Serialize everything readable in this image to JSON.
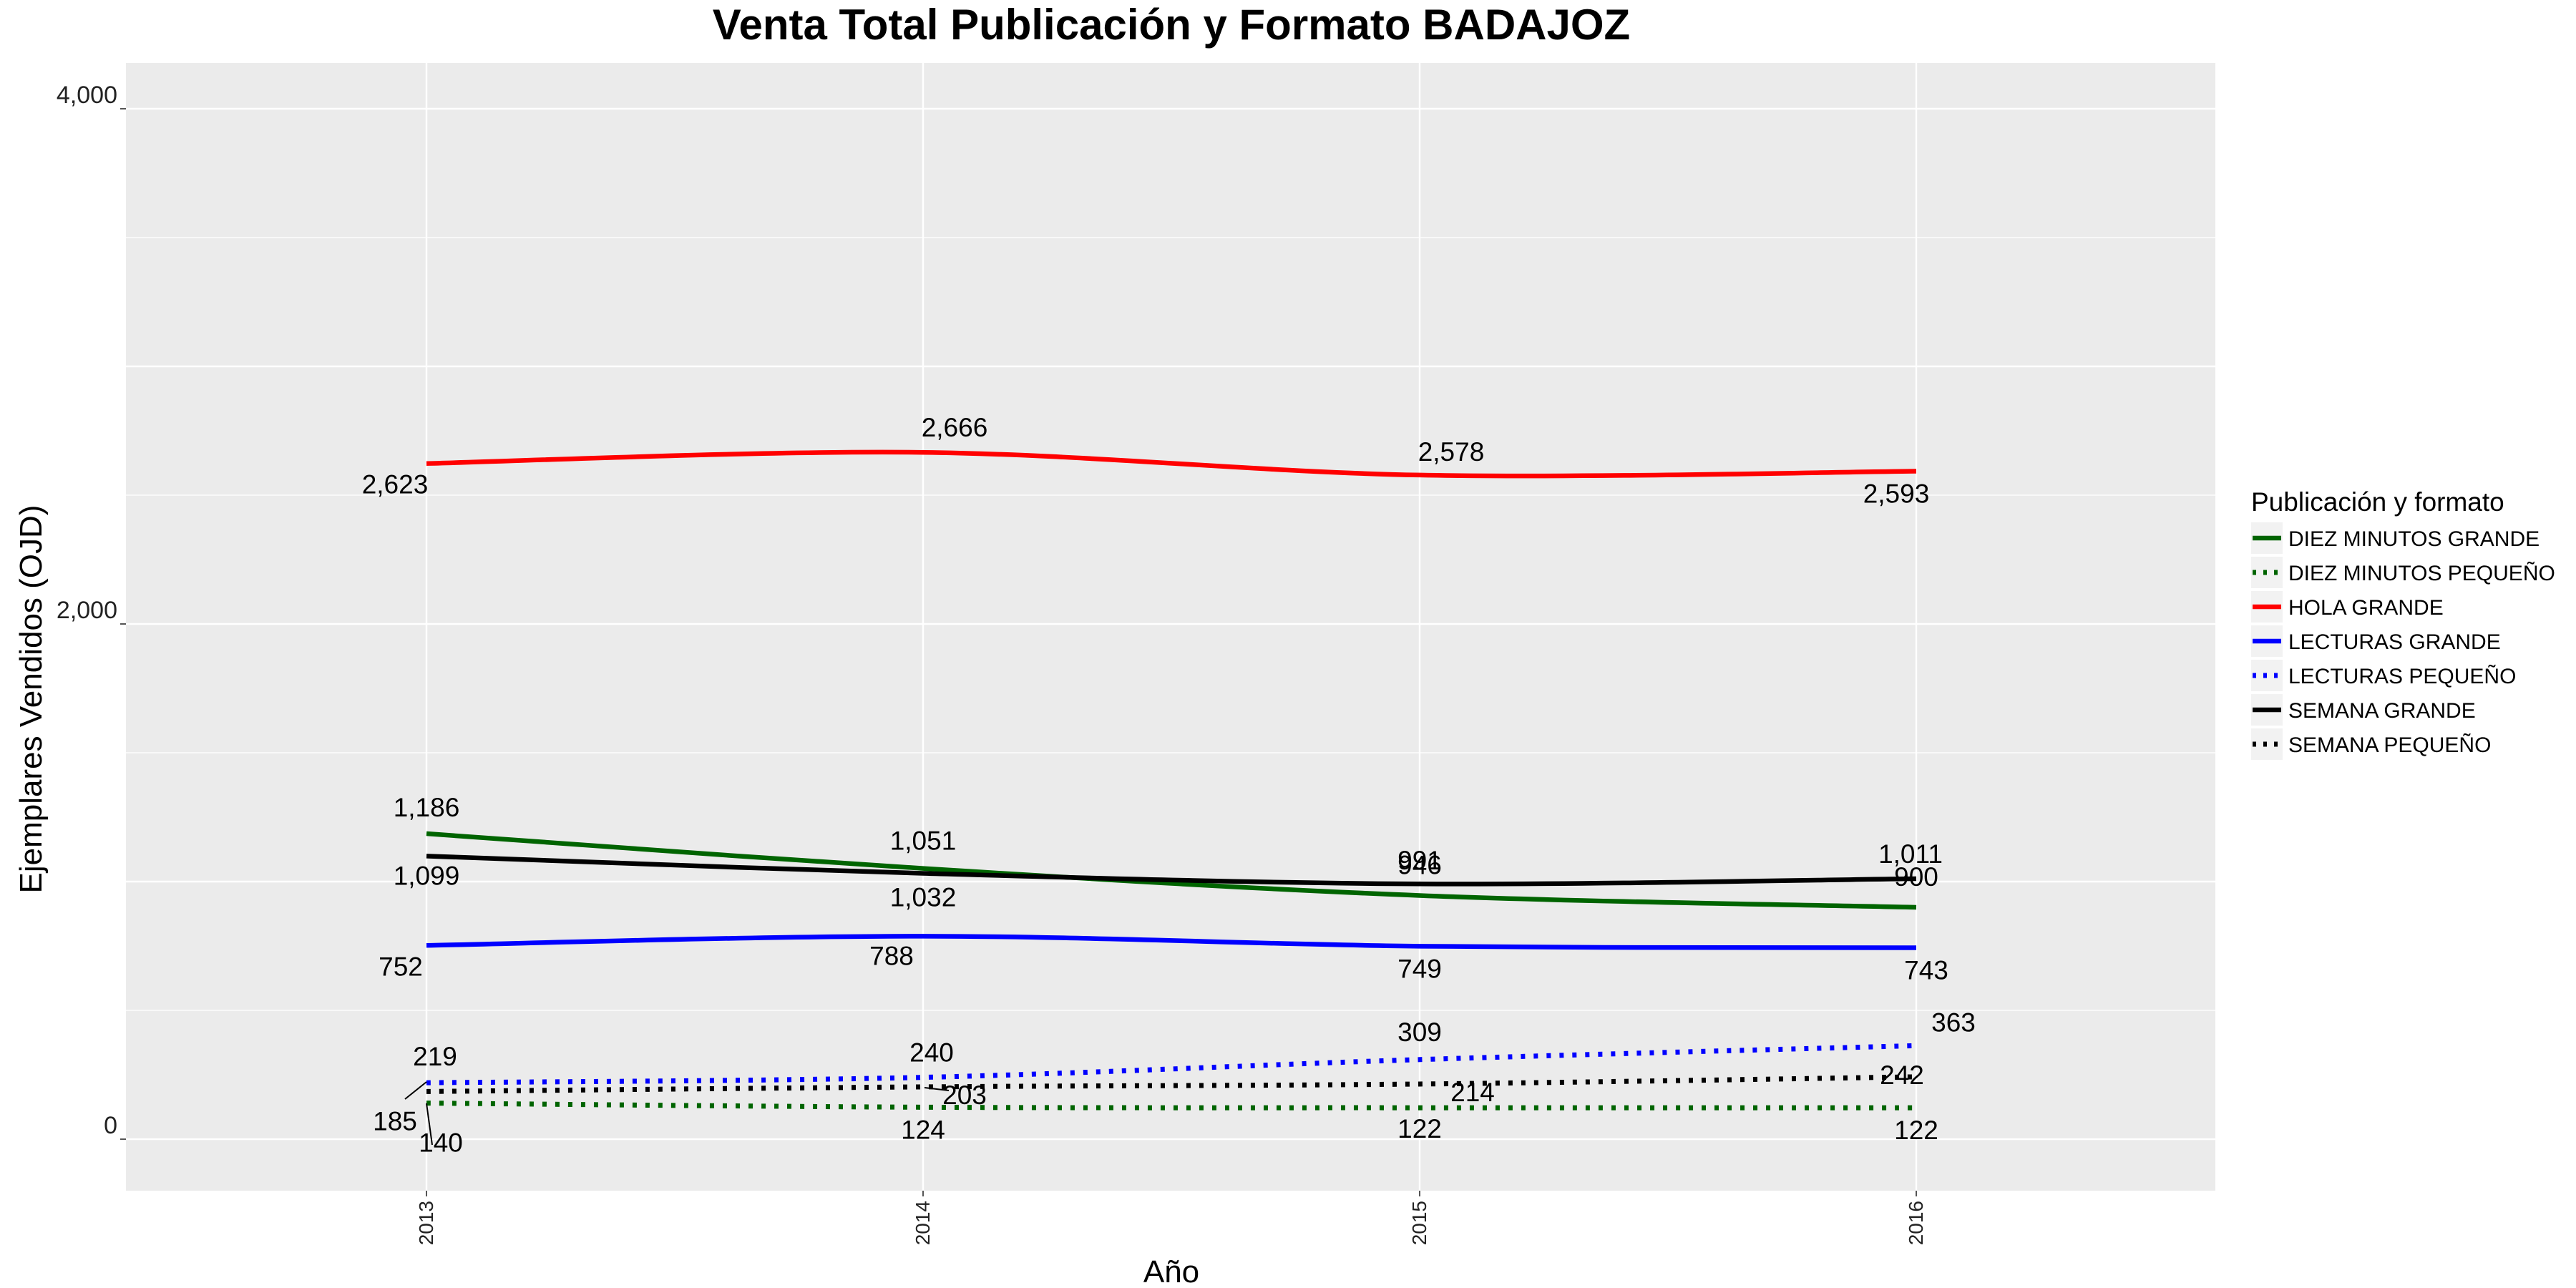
{
  "chart_data": {
    "type": "line",
    "title": "Venta Total Publicación y Formato  BADAJOZ",
    "xlabel": "Año",
    "ylabel": "Ejemplares Vendidos (OJD)",
    "x": [
      "2013",
      "2014",
      "2015",
      "2016"
    ],
    "ylim": [
      -200,
      4050
    ],
    "yticks": [
      0,
      2000,
      4000
    ],
    "ytick_labels": [
      "0",
      "2,000",
      "4,000"
    ],
    "grid": true,
    "legend_title": "Publicación y formato",
    "legend_position": "right",
    "series": [
      {
        "name": "DIEZ MINUTOS GRANDE",
        "values": [
          1186,
          1051,
          946,
          900
        ],
        "labels": [
          "1,186",
          "1,051",
          "946",
          "900"
        ],
        "color": "#006400",
        "dash": "solid"
      },
      {
        "name": "DIEZ MINUTOS PEQUEÑO",
        "values": [
          140,
          124,
          122,
          122
        ],
        "labels": [
          "140",
          "124",
          "122",
          "122"
        ],
        "color": "#006400",
        "dash": "dotted"
      },
      {
        "name": "HOLA GRANDE",
        "values": [
          2623,
          2666,
          2578,
          2593
        ],
        "labels": [
          "2,623",
          "2,666",
          "2,578",
          "2,593"
        ],
        "color": "#ff0000",
        "dash": "solid"
      },
      {
        "name": "LECTURAS GRANDE",
        "values": [
          752,
          788,
          749,
          743
        ],
        "labels": [
          "752",
          "788",
          "749",
          "743"
        ],
        "color": "#0000ff",
        "dash": "solid"
      },
      {
        "name": "LECTURAS PEQUEÑO",
        "values": [
          219,
          240,
          309,
          363
        ],
        "labels": [
          "219",
          "240",
          "309",
          "363"
        ],
        "color": "#0000ff",
        "dash": "dotted"
      },
      {
        "name": "SEMANA GRANDE",
        "values": [
          1099,
          1032,
          991,
          1011
        ],
        "labels": [
          "1,099",
          "1,032",
          "991",
          "1,011"
        ],
        "color": "#000000",
        "dash": "solid"
      },
      {
        "name": "SEMANA PEQUEÑO",
        "values": [
          185,
          203,
          214,
          242
        ],
        "labels": [
          "185",
          "203",
          "214",
          "242"
        ],
        "color": "#000000",
        "dash": "dotted"
      }
    ]
  }
}
